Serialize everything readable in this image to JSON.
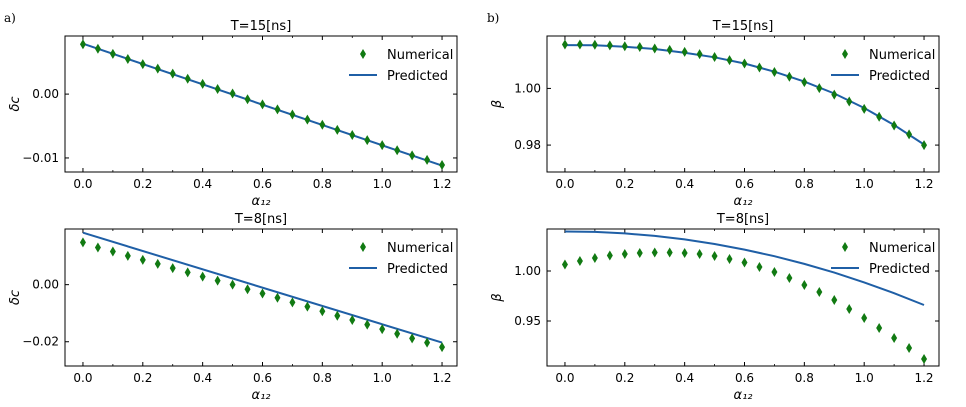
{
  "figure_labels": [
    "a)",
    "b)"
  ],
  "colors": {
    "numerical": "#117a12",
    "predicted": "#1f5fa6"
  },
  "chart_data": [
    {
      "type": "scatter+line",
      "title": "T=15[ns]",
      "xlabel": "α₁₂",
      "ylabel": "δc",
      "xlim": [
        -0.06,
        1.25
      ],
      "ylim": [
        -0.0122,
        0.0091
      ],
      "xticks": [
        0.0,
        0.2,
        0.4,
        0.6,
        0.8,
        1.0,
        1.2
      ],
      "xtick_labels": [
        "0.0",
        "0.2",
        "0.4",
        "0.6",
        "0.8",
        "1.0",
        "1.2"
      ],
      "yticks": [
        0.0,
        -0.01
      ],
      "ytick_labels": [
        "0.00",
        "−0.01"
      ],
      "legend": [
        "Numerical",
        "Predicted"
      ],
      "legend_position": "top-right",
      "numerical": {
        "x": [
          0.0,
          0.05,
          0.1,
          0.15,
          0.2,
          0.25,
          0.3,
          0.35,
          0.4,
          0.45,
          0.5,
          0.55,
          0.6,
          0.65,
          0.7,
          0.75,
          0.8,
          0.85,
          0.9,
          0.95,
          1.0,
          1.05,
          1.1,
          1.15,
          1.2
        ],
        "y": [
          0.0078,
          0.0071,
          0.0063,
          0.0055,
          0.0047,
          0.004,
          0.0032,
          0.0024,
          0.0016,
          0.0008,
          0.0001,
          -0.0008,
          -0.0016,
          -0.0024,
          -0.0032,
          -0.004,
          -0.0048,
          -0.0056,
          -0.0064,
          -0.0072,
          -0.008,
          -0.0088,
          -0.0096,
          -0.0103,
          -0.0111
        ]
      },
      "predicted": {
        "x": [
          0.0,
          1.2
        ],
        "y": [
          0.0079,
          -0.0112
        ]
      }
    },
    {
      "type": "scatter+line",
      "title": "T=15[ns]",
      "xlabel": "α₁₂",
      "ylabel": "β",
      "xlim": [
        -0.06,
        1.25
      ],
      "ylim": [
        0.9705,
        1.0185
      ],
      "xticks": [
        0.0,
        0.2,
        0.4,
        0.6,
        0.8,
        1.0,
        1.2
      ],
      "xtick_labels": [
        "0.0",
        "0.2",
        "0.4",
        "0.6",
        "0.8",
        "1.0",
        "1.2"
      ],
      "yticks": [
        1.0,
        0.98
      ],
      "ytick_labels": [
        "1.00",
        "0.98"
      ],
      "legend": [
        "Numerical",
        "Predicted"
      ],
      "legend_position": "top-right",
      "numerical": {
        "x": [
          0.0,
          0.05,
          0.1,
          0.15,
          0.2,
          0.25,
          0.3,
          0.35,
          0.4,
          0.45,
          0.5,
          0.55,
          0.6,
          0.65,
          0.7,
          0.75,
          0.8,
          0.85,
          0.9,
          0.95,
          1.0,
          1.05,
          1.1,
          1.15,
          1.2
        ],
        "y": [
          1.0155,
          1.0155,
          1.0154,
          1.0152,
          1.0149,
          1.0146,
          1.0141,
          1.0136,
          1.0129,
          1.0121,
          1.0111,
          1.01,
          1.0088,
          1.0074,
          1.0058,
          1.0041,
          1.0022,
          1.0001,
          0.9978,
          0.9954,
          0.9928,
          0.99,
          0.9869,
          0.9838,
          0.98
        ]
      },
      "predicted": {
        "x": [
          0.0,
          0.1,
          0.2,
          0.3,
          0.4,
          0.5,
          0.6,
          0.7,
          0.8,
          0.9,
          1.0,
          1.1,
          1.2
        ],
        "y": [
          1.0153,
          1.0152,
          1.0147,
          1.0139,
          1.0126,
          1.011,
          1.0088,
          1.0059,
          1.0024,
          0.9982,
          0.9931,
          0.9871,
          0.9802
        ]
      }
    },
    {
      "type": "scatter+line",
      "title": "T=8[ns]",
      "xlabel": "α₁₂",
      "ylabel": "δc",
      "xlim": [
        -0.06,
        1.25
      ],
      "ylim": [
        -0.0285,
        0.0195
      ],
      "xticks": [
        0.0,
        0.2,
        0.4,
        0.6,
        0.8,
        1.0,
        1.2
      ],
      "xtick_labels": [
        "0.0",
        "0.2",
        "0.4",
        "0.6",
        "0.8",
        "1.0",
        "1.2"
      ],
      "yticks": [
        0.0,
        -0.02
      ],
      "ytick_labels": [
        "0.00",
        "−0.02"
      ],
      "legend": [
        "Numerical",
        "Predicted"
      ],
      "legend_position": "top-right",
      "numerical": {
        "x": [
          0.0,
          0.05,
          0.1,
          0.15,
          0.2,
          0.25,
          0.3,
          0.35,
          0.4,
          0.45,
          0.5,
          0.55,
          0.6,
          0.65,
          0.7,
          0.75,
          0.8,
          0.85,
          0.9,
          0.95,
          1.0,
          1.05,
          1.1,
          1.15,
          1.2
        ],
        "y": [
          0.0148,
          0.013,
          0.0116,
          0.0101,
          0.0087,
          0.0073,
          0.0058,
          0.0043,
          0.0028,
          0.0014,
          0.0,
          -0.0016,
          -0.0031,
          -0.0046,
          -0.0062,
          -0.0077,
          -0.0093,
          -0.0109,
          -0.0124,
          -0.014,
          -0.0156,
          -0.0172,
          -0.0188,
          -0.0203,
          -0.0219
        ]
      },
      "predicted": {
        "x": [
          0.0,
          1.2
        ],
        "y": [
          0.0182,
          -0.0203
        ]
      }
    },
    {
      "type": "scatter+line",
      "title": "T=8[ns]",
      "xlabel": "α₁₂",
      "ylabel": "β",
      "xlim": [
        -0.06,
        1.25
      ],
      "ylim": [
        0.905,
        1.042
      ],
      "xticks": [
        0.0,
        0.2,
        0.4,
        0.6,
        0.8,
        1.0,
        1.2
      ],
      "xtick_labels": [
        "0.0",
        "0.2",
        "0.4",
        "0.6",
        "0.8",
        "1.0",
        "1.2"
      ],
      "yticks": [
        1.0,
        0.95
      ],
      "ytick_labels": [
        "1.00",
        "0.95"
      ],
      "legend": [
        "Numerical",
        "Predicted"
      ],
      "legend_position": "top-right",
      "numerical": {
        "x": [
          0.0,
          0.05,
          0.1,
          0.15,
          0.2,
          0.25,
          0.3,
          0.35,
          0.4,
          0.45,
          0.5,
          0.55,
          0.6,
          0.65,
          0.7,
          0.75,
          0.8,
          0.85,
          0.9,
          0.95,
          1.0,
          1.05,
          1.1,
          1.15,
          1.2
        ],
        "y": [
          1.0065,
          1.01,
          1.013,
          1.0155,
          1.017,
          1.018,
          1.0185,
          1.0185,
          1.018,
          1.017,
          1.015,
          1.012,
          1.0085,
          1.004,
          0.999,
          0.993,
          0.986,
          0.979,
          0.971,
          0.962,
          0.953,
          0.943,
          0.933,
          0.923,
          0.912
        ]
      },
      "predicted": {
        "x": [
          0.0,
          0.1,
          0.2,
          0.3,
          0.4,
          0.5,
          0.6,
          0.7,
          0.8,
          0.9,
          1.0,
          1.1,
          1.2
        ],
        "y": [
          1.0395,
          1.0391,
          1.0376,
          1.0351,
          1.0316,
          1.027,
          1.0214,
          1.0148,
          1.0071,
          0.9984,
          0.9886,
          0.9778,
          0.966
        ]
      }
    }
  ]
}
